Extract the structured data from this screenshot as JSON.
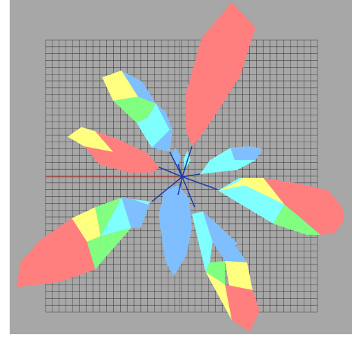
{
  "viewport": {
    "background": "#a7a7a7",
    "grid_color": "#3f3f3f",
    "x_axis_color": "#c0392b",
    "y_axis_color": "#27ae60"
  },
  "palette": {
    "red": "#ff7f7f",
    "yellow": "#ffff80",
    "green": "#80ff80",
    "cyan": "#80ffff",
    "blue": "#80bfff",
    "stem": "#1a3aa8"
  },
  "plant": {
    "leaf_count": 9
  }
}
